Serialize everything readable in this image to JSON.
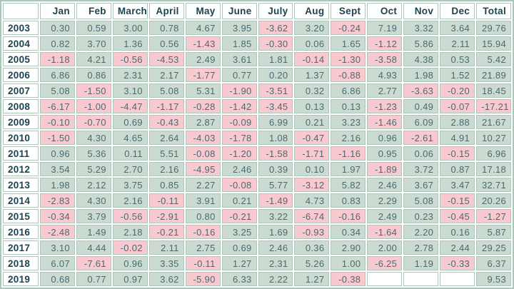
{
  "colors": {
    "grid": "#a9c7bb",
    "positive_bg": "#ccdbd2",
    "negative_bg": "#f8cad0",
    "empty_bg": "#ffffff",
    "header_text": "#1b4350",
    "value_text": "#486b72"
  },
  "chart_data": {
    "type": "table",
    "corner_label": "",
    "columns": [
      "Jan",
      "Feb",
      "March",
      "April",
      "May",
      "June",
      "July",
      "Aug",
      "Sept",
      "Oct",
      "Nov",
      "Dec",
      "Total"
    ],
    "rows": [
      {
        "year": "2003",
        "values": [
          "0.30",
          "0.59",
          "3.00",
          "0.78",
          "4.67",
          "3.95",
          "-3.62",
          "3.20",
          "-0.24",
          "7.19",
          "3.32",
          "3.64",
          "29.76"
        ]
      },
      {
        "year": "2004",
        "values": [
          "0.82",
          "3.70",
          "1.36",
          "0.56",
          "-1.43",
          "1.85",
          "-0.30",
          "0.06",
          "1.65",
          "-1.12",
          "5.86",
          "2.11",
          "15.94"
        ]
      },
      {
        "year": "2005",
        "values": [
          "-1.18",
          "4.21",
          "-0.56",
          "-4.53",
          "2.49",
          "3.61",
          "1.81",
          "-0.14",
          "-1.30",
          "-3.58",
          "4.38",
          "0.53",
          "5.42"
        ]
      },
      {
        "year": "2006",
        "values": [
          "6.86",
          "0.86",
          "2.31",
          "2.17",
          "-1.77",
          "0.77",
          "0.20",
          "1.37",
          "-0.88",
          "4.93",
          "1.98",
          "1.52",
          "21.89"
        ]
      },
      {
        "year": "2007",
        "values": [
          "5.08",
          "-1.50",
          "3.10",
          "5.08",
          "5.31",
          "-1.90",
          "-3.51",
          "0.32",
          "6.86",
          "2.77",
          "-3.63",
          "-0.20",
          "18.45"
        ]
      },
      {
        "year": "2008",
        "values": [
          "-6.17",
          "-1.00",
          "-4.47",
          "-1.17",
          "-0.28",
          "-1.42",
          "-3.45",
          "0.13",
          "0.13",
          "-1.23",
          "0.49",
          "-0.07",
          "-17.21"
        ]
      },
      {
        "year": "2009",
        "values": [
          "-0.10",
          "-0.70",
          "0.69",
          "-0.43",
          "2.87",
          "-0.09",
          "6.99",
          "0.21",
          "3.23",
          "-1.46",
          "6.09",
          "2.88",
          "21.67"
        ]
      },
      {
        "year": "2010",
        "values": [
          "-1.50",
          "4.30",
          "4.65",
          "2.64",
          "-4.03",
          "-1.78",
          "1.08",
          "-0.47",
          "2.16",
          "0.96",
          "-2.61",
          "4.91",
          "10.27"
        ]
      },
      {
        "year": "2011",
        "values": [
          "0.96",
          "5.36",
          "0.11",
          "5.51",
          "-0.08",
          "-1.20",
          "-1.58",
          "-1.71",
          "-1.16",
          "0.95",
          "0.06",
          "-0.15",
          "6.96"
        ]
      },
      {
        "year": "2012",
        "values": [
          "3.54",
          "5.29",
          "2.70",
          "2.16",
          "-4.95",
          "2.46",
          "0.39",
          "0.10",
          "1.97",
          "-1.89",
          "3.72",
          "0.87",
          "17.18"
        ]
      },
      {
        "year": "2013",
        "values": [
          "1.98",
          "2.12",
          "3.75",
          "0.85",
          "2.27",
          "-0.08",
          "5.77",
          "-3.12",
          "5.82",
          "2.46",
          "3.67",
          "3.47",
          "32.71"
        ]
      },
      {
        "year": "2014",
        "values": [
          "-2.83",
          "4.30",
          "2.16",
          "-0.11",
          "3.91",
          "0.21",
          "-1.49",
          "4.73",
          "0.83",
          "2.29",
          "5.08",
          "-0.15",
          "20.26"
        ]
      },
      {
        "year": "2015",
        "values": [
          "-0.34",
          "3.79",
          "-0.56",
          "-2.91",
          "0.80",
          "-0.21",
          "3.22",
          "-6.74",
          "-0.16",
          "2.49",
          "0.23",
          "-0.45",
          "-1.27"
        ]
      },
      {
        "year": "2016",
        "values": [
          "-2.48",
          "1.49",
          "2.18",
          "-0.21",
          "-0.16",
          "3.25",
          "1.69",
          "-0.93",
          "0.34",
          "-1.64",
          "2.20",
          "0.16",
          "5.87"
        ]
      },
      {
        "year": "2017",
        "values": [
          "3.10",
          "4.44",
          "-0.02",
          "2.11",
          "2.75",
          "0.69",
          "2.46",
          "0.36",
          "2.90",
          "2.00",
          "2.78",
          "2.44",
          "29.25"
        ]
      },
      {
        "year": "2018",
        "values": [
          "6.07",
          "-7.61",
          "0.96",
          "3.35",
          "-0.11",
          "1.27",
          "2.31",
          "5.26",
          "1.00",
          "-6.25",
          "1.19",
          "-0.33",
          "6.37"
        ]
      },
      {
        "year": "2019",
        "values": [
          "0.68",
          "0.77",
          "0.97",
          "3.62",
          "-5.90",
          "6.33",
          "2.22",
          "1.27",
          "-0.38",
          null,
          null,
          null,
          "9.53"
        ]
      }
    ]
  }
}
